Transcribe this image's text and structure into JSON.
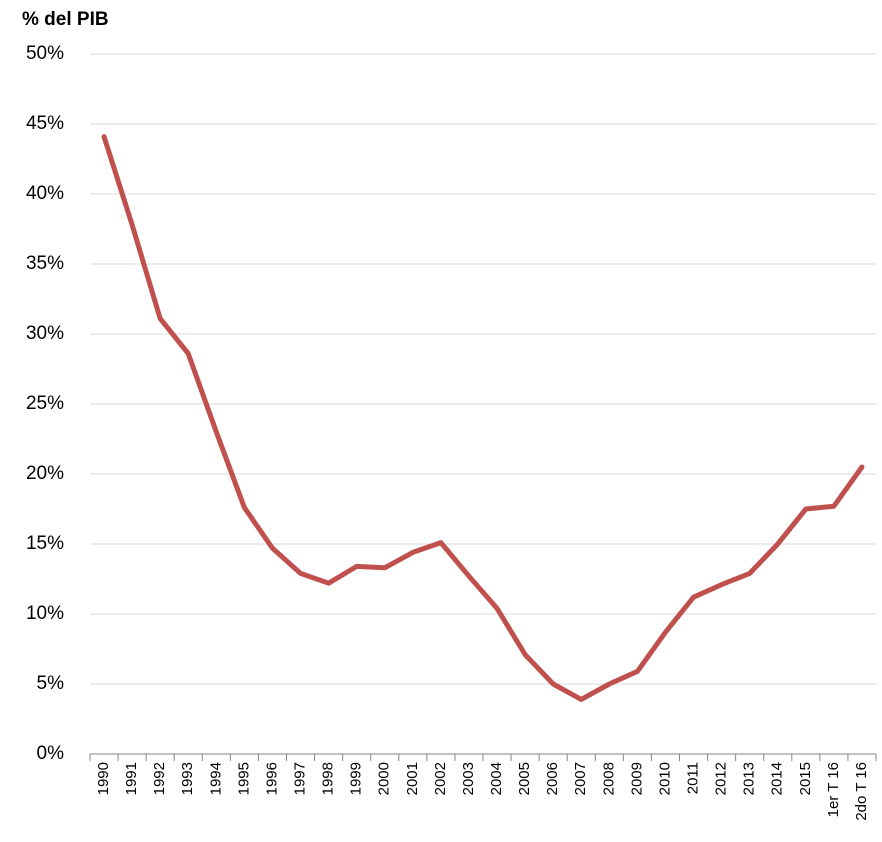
{
  "chart_data": {
    "type": "line",
    "title": "% del PIB",
    "categories": [
      "1990",
      "1991",
      "1992",
      "1993",
      "1994",
      "1995",
      "1996",
      "1997",
      "1998",
      "1999",
      "2000",
      "2001",
      "2002",
      "2003",
      "2004",
      "2005",
      "2006",
      "2007",
      "2008",
      "2009",
      "2010",
      "2011",
      "2012",
      "2013",
      "2014",
      "2015",
      "1er T 16",
      "2do T 16"
    ],
    "series": [
      {
        "name": null,
        "color": "#c0504d",
        "values": [
          44.1,
          37.8,
          31.1,
          28.6,
          23.0,
          17.6,
          14.7,
          12.9,
          12.2,
          13.4,
          13.3,
          14.4,
          15.1,
          12.7,
          10.4,
          7.1,
          5.0,
          3.9,
          5.0,
          5.9,
          8.7,
          11.2,
          12.1,
          12.9,
          15.0,
          17.5,
          17.7,
          20.5
        ]
      }
    ],
    "ylim": [
      0,
      50
    ],
    "yticks": [
      {
        "value": 0,
        "label": "0%"
      },
      {
        "value": 5,
        "label": "5%"
      },
      {
        "value": 10,
        "label": "10%"
      },
      {
        "value": 15,
        "label": "15%"
      },
      {
        "value": 20,
        "label": "20%"
      },
      {
        "value": 25,
        "label": "25%"
      },
      {
        "value": 30,
        "label": "30%"
      },
      {
        "value": 35,
        "label": "35%"
      },
      {
        "value": 40,
        "label": "40%"
      },
      {
        "value": 45,
        "label": "45%"
      },
      {
        "value": 50,
        "label": "50%"
      }
    ],
    "grid": true
  }
}
